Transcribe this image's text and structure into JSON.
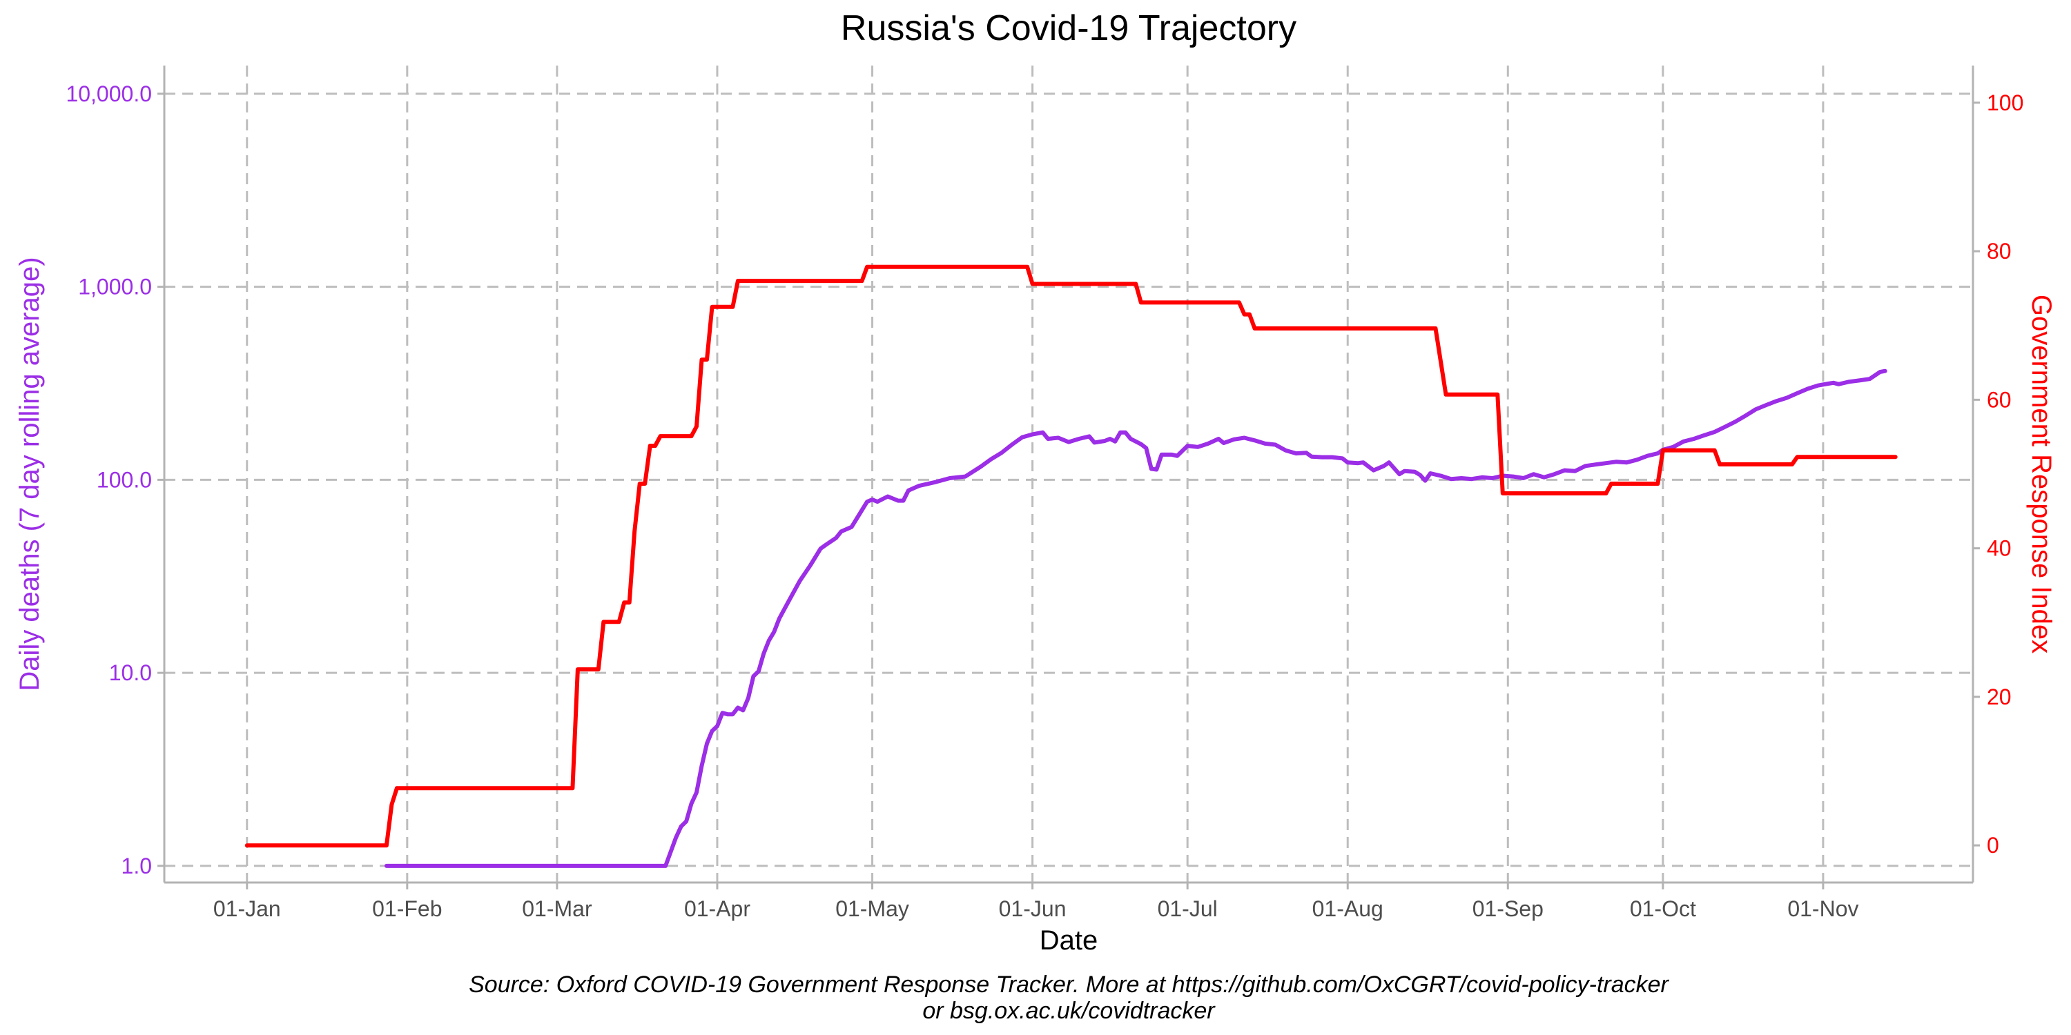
{
  "chart_data": {
    "type": "line",
    "title": "Russia's Covid-19 Trajectory",
    "xlabel": "Date",
    "ylabel_left": "Daily deaths (7 day rolling average)",
    "ylabel_right": "Government Response Index",
    "source_line1": "Source: Oxford COVID-19 Government Response Tracker. More at https://github.com/OxCGRT/covid-policy-tracker",
    "source_line2": "or bsg.ox.ac.uk/covidtracker",
    "x_ticks": [
      {
        "label": "01-Jan",
        "date": "2020-01-01"
      },
      {
        "label": "01-Feb",
        "date": "2020-02-01"
      },
      {
        "label": "01-Mar",
        "date": "2020-03-01"
      },
      {
        "label": "01-Apr",
        "date": "2020-04-01"
      },
      {
        "label": "01-May",
        "date": "2020-05-01"
      },
      {
        "label": "01-Jun",
        "date": "2020-06-01"
      },
      {
        "label": "01-Jul",
        "date": "2020-07-01"
      },
      {
        "label": "01-Aug",
        "date": "2020-08-01"
      },
      {
        "label": "01-Sep",
        "date": "2020-09-01"
      },
      {
        "label": "01-Oct",
        "date": "2020-10-01"
      },
      {
        "label": "01-Nov",
        "date": "2020-11-01"
      }
    ],
    "xlim": [
      "2019-12-16",
      "2020-11-30"
    ],
    "y_left": {
      "scale": "log10",
      "ylim": [
        0.82,
        14000
      ],
      "ticks": [
        {
          "label": "1.0",
          "value": 1
        },
        {
          "label": "10.0",
          "value": 10
        },
        {
          "label": "100.0",
          "value": 100
        },
        {
          "label": "1,000.0",
          "value": 1000
        },
        {
          "label": "10,000.0",
          "value": 10000
        }
      ]
    },
    "y_right": {
      "scale": "linear",
      "ylim": [
        -5,
        105
      ],
      "ticks": [
        {
          "label": "0",
          "value": 0
        },
        {
          "label": "20",
          "value": 20
        },
        {
          "label": "40",
          "value": 40
        },
        {
          "label": "60",
          "value": 60
        },
        {
          "label": "80",
          "value": 80
        },
        {
          "label": "100",
          "value": 100
        }
      ]
    },
    "grid": true,
    "series": [
      {
        "name": "Daily deaths (7 day rolling average)",
        "axis": "left",
        "color": "#9b2ee6",
        "points": [
          [
            "2020-01-28",
            1
          ],
          [
            "2020-03-22",
            1
          ],
          [
            "2020-03-24",
            1.4
          ],
          [
            "2020-03-25",
            1.6
          ],
          [
            "2020-03-26",
            1.7
          ],
          [
            "2020-03-27",
            2.1
          ],
          [
            "2020-03-28",
            2.4
          ],
          [
            "2020-03-29",
            3.3
          ],
          [
            "2020-03-30",
            4.3
          ],
          [
            "2020-03-31",
            5.0
          ],
          [
            "2020-04-01",
            5.3
          ],
          [
            "2020-04-02",
            6.2
          ],
          [
            "2020-04-03",
            6.1
          ],
          [
            "2020-04-04",
            6.1
          ],
          [
            "2020-04-05",
            6.6
          ],
          [
            "2020-04-06",
            6.4
          ],
          [
            "2020-04-07",
            7.4
          ],
          [
            "2020-04-08",
            9.6
          ],
          [
            "2020-04-09",
            10.2
          ],
          [
            "2020-04-10",
            12.6
          ],
          [
            "2020-04-11",
            14.7
          ],
          [
            "2020-04-12",
            16.3
          ],
          [
            "2020-04-13",
            19.1
          ],
          [
            "2020-04-15",
            24
          ],
          [
            "2020-04-17",
            30
          ],
          [
            "2020-04-19",
            36
          ],
          [
            "2020-04-21",
            44
          ],
          [
            "2020-04-22",
            46
          ],
          [
            "2020-04-24",
            50
          ],
          [
            "2020-04-25",
            54
          ],
          [
            "2020-04-27",
            57
          ],
          [
            "2020-04-28",
            63
          ],
          [
            "2020-04-30",
            77
          ],
          [
            "2020-05-01",
            79
          ],
          [
            "2020-05-02",
            77
          ],
          [
            "2020-05-04",
            82
          ],
          [
            "2020-05-06",
            78
          ],
          [
            "2020-05-07",
            78
          ],
          [
            "2020-05-08",
            88
          ],
          [
            "2020-05-10",
            93
          ],
          [
            "2020-05-13",
            97
          ],
          [
            "2020-05-16",
            102
          ],
          [
            "2020-05-19",
            104
          ],
          [
            "2020-05-22",
            117
          ],
          [
            "2020-05-24",
            128
          ],
          [
            "2020-05-26",
            138
          ],
          [
            "2020-05-28",
            152
          ],
          [
            "2020-05-30",
            166
          ],
          [
            "2020-06-01",
            172
          ],
          [
            "2020-06-03",
            176
          ],
          [
            "2020-06-04",
            163
          ],
          [
            "2020-06-06",
            165
          ],
          [
            "2020-06-08",
            157
          ],
          [
            "2020-06-10",
            163
          ],
          [
            "2020-06-12",
            168
          ],
          [
            "2020-06-13",
            156
          ],
          [
            "2020-06-15",
            159
          ],
          [
            "2020-06-16",
            163
          ],
          [
            "2020-06-17",
            158
          ],
          [
            "2020-06-18",
            176
          ],
          [
            "2020-06-19",
            176
          ],
          [
            "2020-06-20",
            163
          ],
          [
            "2020-06-22",
            153
          ],
          [
            "2020-06-23",
            146
          ],
          [
            "2020-06-24",
            114
          ],
          [
            "2020-06-25",
            113
          ],
          [
            "2020-06-26",
            135
          ],
          [
            "2020-06-28",
            135
          ],
          [
            "2020-06-29",
            133
          ],
          [
            "2020-07-01",
            150
          ],
          [
            "2020-07-03",
            148
          ],
          [
            "2020-07-05",
            154
          ],
          [
            "2020-07-07",
            163
          ],
          [
            "2020-07-08",
            155
          ],
          [
            "2020-07-10",
            162
          ],
          [
            "2020-07-12",
            165
          ],
          [
            "2020-07-14",
            160
          ],
          [
            "2020-07-16",
            154
          ],
          [
            "2020-07-18",
            152
          ],
          [
            "2020-07-20",
            142
          ],
          [
            "2020-07-22",
            137
          ],
          [
            "2020-07-24",
            138
          ],
          [
            "2020-07-25",
            132
          ],
          [
            "2020-07-27",
            131
          ],
          [
            "2020-07-29",
            131
          ],
          [
            "2020-07-31",
            129
          ],
          [
            "2020-08-01",
            123
          ],
          [
            "2020-08-03",
            122
          ],
          [
            "2020-08-04",
            123
          ],
          [
            "2020-08-06",
            112
          ],
          [
            "2020-08-08",
            118
          ],
          [
            "2020-08-09",
            123
          ],
          [
            "2020-08-11",
            107
          ],
          [
            "2020-08-12",
            111
          ],
          [
            "2020-08-14",
            110
          ],
          [
            "2020-08-15",
            106
          ],
          [
            "2020-08-16",
            99
          ],
          [
            "2020-08-17",
            108
          ],
          [
            "2020-08-19",
            105
          ],
          [
            "2020-08-21",
            101
          ],
          [
            "2020-08-23",
            102
          ],
          [
            "2020-08-25",
            101
          ],
          [
            "2020-08-27",
            103
          ],
          [
            "2020-08-29",
            102
          ],
          [
            "2020-08-31",
            105
          ],
          [
            "2020-09-02",
            104
          ],
          [
            "2020-09-04",
            102
          ],
          [
            "2020-09-06",
            107
          ],
          [
            "2020-09-08",
            103
          ],
          [
            "2020-09-10",
            107
          ],
          [
            "2020-09-12",
            112
          ],
          [
            "2020-09-14",
            111
          ],
          [
            "2020-09-16",
            118
          ],
          [
            "2020-09-18",
            120
          ],
          [
            "2020-09-20",
            122
          ],
          [
            "2020-09-22",
            124
          ],
          [
            "2020-09-24",
            123
          ],
          [
            "2020-09-26",
            127
          ],
          [
            "2020-09-28",
            133
          ],
          [
            "2020-09-30",
            137
          ],
          [
            "2020-10-01",
            143
          ],
          [
            "2020-10-03",
            148
          ],
          [
            "2020-10-05",
            158
          ],
          [
            "2020-10-07",
            163
          ],
          [
            "2020-10-09",
            170
          ],
          [
            "2020-10-11",
            177
          ],
          [
            "2020-10-13",
            188
          ],
          [
            "2020-10-15",
            200
          ],
          [
            "2020-10-17",
            215
          ],
          [
            "2020-10-19",
            232
          ],
          [
            "2020-10-21",
            244
          ],
          [
            "2020-10-23",
            256
          ],
          [
            "2020-10-25",
            266
          ],
          [
            "2020-10-27",
            281
          ],
          [
            "2020-10-29",
            296
          ],
          [
            "2020-10-31",
            308
          ],
          [
            "2020-11-02",
            315
          ],
          [
            "2020-11-03",
            318
          ],
          [
            "2020-11-04",
            313
          ],
          [
            "2020-11-06",
            322
          ],
          [
            "2020-11-08",
            327
          ],
          [
            "2020-11-10",
            333
          ],
          [
            "2020-11-12",
            362
          ],
          [
            "2020-11-13",
            366
          ]
        ]
      },
      {
        "name": "Government Response Index",
        "axis": "right",
        "color": "#ff0000",
        "points": [
          [
            "2020-01-01",
            0
          ],
          [
            "2020-01-28",
            0
          ],
          [
            "2020-01-29",
            5.5
          ],
          [
            "2020-01-30",
            7.7
          ],
          [
            "2020-02-29",
            7.7
          ],
          [
            "2020-03-04",
            7.7
          ],
          [
            "2020-03-05",
            23.7
          ],
          [
            "2020-03-09",
            23.7
          ],
          [
            "2020-03-10",
            30.1
          ],
          [
            "2020-03-13",
            30.1
          ],
          [
            "2020-03-14",
            32.7
          ],
          [
            "2020-03-15",
            32.7
          ],
          [
            "2020-03-16",
            42.3
          ],
          [
            "2020-03-17",
            48.7
          ],
          [
            "2020-03-18",
            48.7
          ],
          [
            "2020-03-19",
            53.8
          ],
          [
            "2020-03-20",
            53.8
          ],
          [
            "2020-03-21",
            55.1
          ],
          [
            "2020-03-27",
            55.1
          ],
          [
            "2020-03-28",
            56.4
          ],
          [
            "2020-03-29",
            65.4
          ],
          [
            "2020-03-30",
            65.4
          ],
          [
            "2020-03-31",
            72.5
          ],
          [
            "2020-04-04",
            72.5
          ],
          [
            "2020-04-05",
            76.0
          ],
          [
            "2020-04-29",
            76.0
          ],
          [
            "2020-04-30",
            77.9
          ],
          [
            "2020-05-31",
            77.9
          ],
          [
            "2020-06-01",
            75.6
          ],
          [
            "2020-06-21",
            75.6
          ],
          [
            "2020-06-22",
            73.1
          ],
          [
            "2020-07-11",
            73.1
          ],
          [
            "2020-07-12",
            71.5
          ],
          [
            "2020-07-13",
            71.5
          ],
          [
            "2020-07-14",
            69.6
          ],
          [
            "2020-08-18",
            69.6
          ],
          [
            "2020-08-20",
            60.7
          ],
          [
            "2020-08-30",
            60.7
          ],
          [
            "2020-08-31",
            47.4
          ],
          [
            "2020-09-20",
            47.4
          ],
          [
            "2020-09-21",
            48.7
          ],
          [
            "2020-09-30",
            48.7
          ],
          [
            "2020-10-01",
            53.2
          ],
          [
            "2020-10-11",
            53.2
          ],
          [
            "2020-10-12",
            51.3
          ],
          [
            "2020-10-26",
            51.3
          ],
          [
            "2020-10-27",
            52.3
          ],
          [
            "2020-11-15",
            52.3
          ]
        ]
      }
    ]
  }
}
